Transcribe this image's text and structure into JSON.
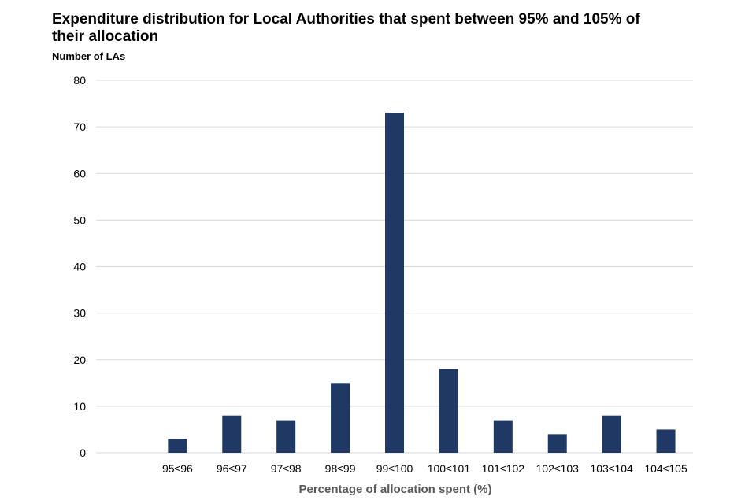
{
  "chart_data": {
    "type": "bar",
    "title": "Expenditure distribution for Local Authorities that spent between 95% and 105% of their allocation",
    "ylabel": "Number of LAs",
    "xlabel": "Percentage of allocation spent (%)",
    "categories": [
      "",
      "95≤96",
      "96≤97",
      "97≤98",
      "98≤99",
      "99≤100",
      "100≤101",
      "101≤102",
      "102≤103",
      "103≤104",
      "104≤105"
    ],
    "values": [
      0,
      3,
      8,
      7,
      15,
      73,
      18,
      7,
      4,
      8,
      5
    ],
    "ylim": [
      0,
      80
    ],
    "yticks": [
      0,
      10,
      20,
      30,
      40,
      50,
      60,
      70,
      80
    ],
    "grid": true,
    "bar_color": "#1f3864",
    "grid_color": "#d9d9d9"
  }
}
